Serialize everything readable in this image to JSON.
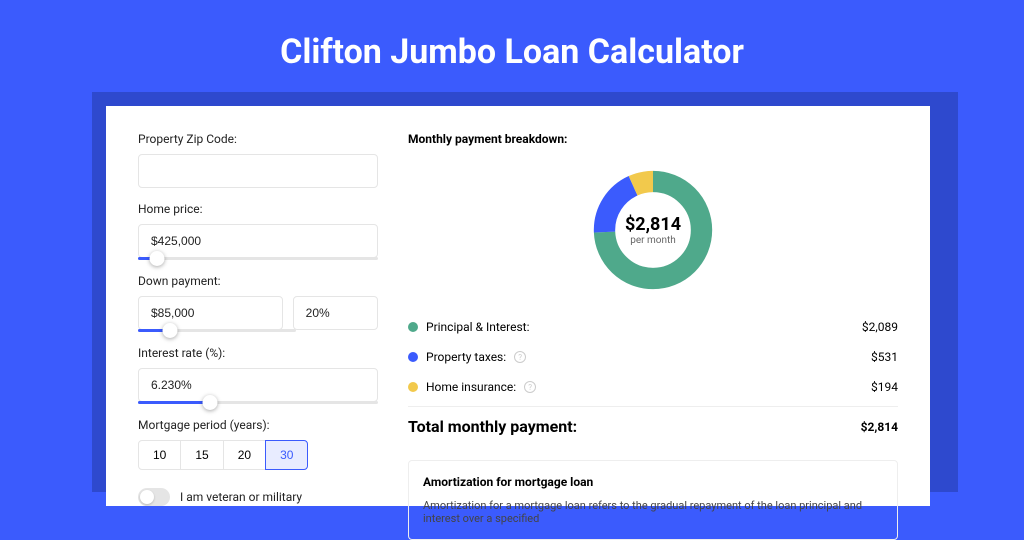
{
  "title": "Clifton Jumbo Loan Calculator",
  "form": {
    "zip_label": "Property Zip Code:",
    "zip_value": "",
    "home_price_label": "Home price:",
    "home_price_value": "$425,000",
    "home_price_slider": {
      "fill_pct": 8,
      "thumb_pct": 8
    },
    "down_payment_label": "Down payment:",
    "down_payment_value": "$85,000",
    "down_payment_pct_value": "20%",
    "down_payment_slider": {
      "fill_pct": 20,
      "thumb_pct": 20
    },
    "interest_label": "Interest rate (%):",
    "interest_value": "6.230%",
    "interest_slider": {
      "fill_pct": 30,
      "thumb_pct": 30
    },
    "period_label": "Mortgage period (years):",
    "period_options": [
      "10",
      "15",
      "20",
      "30"
    ],
    "period_selected": "30",
    "veteran_label": "I am veteran or military"
  },
  "breakdown": {
    "title": "Monthly payment breakdown:",
    "donut": {
      "amount": "$2,814",
      "sub": "per month",
      "segments": [
        {
          "color": "#4fa98b",
          "pct": 74.2
        },
        {
          "color": "#3b5bfd",
          "pct": 18.9
        },
        {
          "color": "#f2c94c",
          "pct": 6.9
        }
      ]
    },
    "rows": [
      {
        "label": "Principal & Interest:",
        "value": "$2,089",
        "color": "#4fa98b",
        "info": false
      },
      {
        "label": "Property taxes:",
        "value": "$531",
        "color": "#3b5bfd",
        "info": true
      },
      {
        "label": "Home insurance:",
        "value": "$194",
        "color": "#f2c94c",
        "info": true
      }
    ],
    "total_label": "Total monthly payment:",
    "total_value": "$2,814"
  },
  "amort": {
    "title": "Amortization for mortgage loan",
    "text": "Amortization for a mortgage loan refers to the gradual repayment of the loan principal and interest over a specified"
  }
}
